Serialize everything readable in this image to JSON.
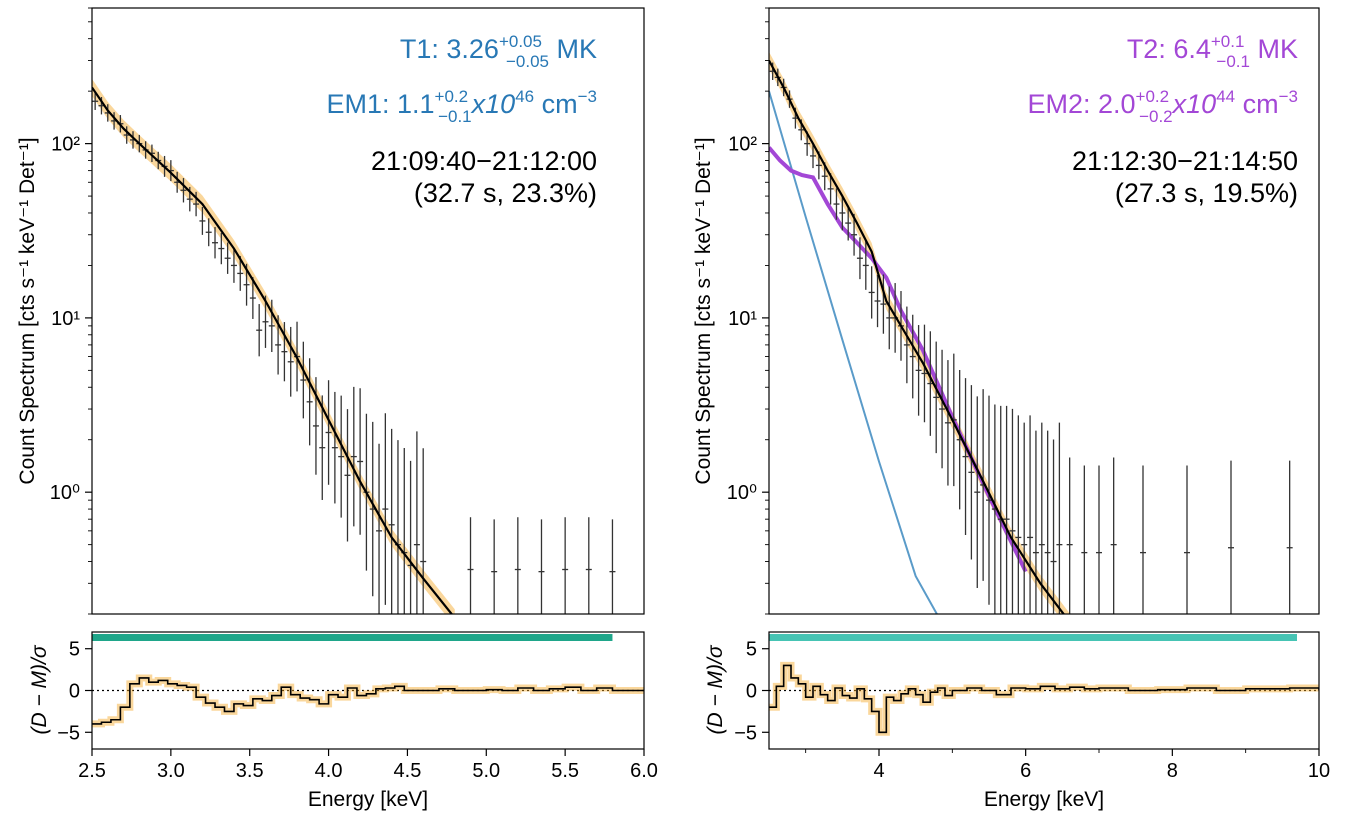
{
  "chart_data": [
    {
      "type": "scatter",
      "panel": "left-spectrum",
      "ylabel": "Count Spectrum [cts s⁻¹ keV⁻¹ Det⁻¹]",
      "xlim": [
        2.5,
        6.0
      ],
      "ylim": [
        0.2,
        600
      ],
      "yscale": "log",
      "yticks": [
        "10⁰",
        "10¹",
        "10²"
      ],
      "annotations": {
        "temp_label": "T1: 3.26",
        "temp_sup": "+0.05",
        "temp_sub": "−0.05",
        "temp_unit": " MK",
        "temp_color": "#2878b5",
        "em_label": "EM1: 1.1",
        "em_sup": "+0.2",
        "em_sub": "−0.1",
        "em_unit_mid": "x10",
        "em_exp": "46",
        "em_unit": " cm",
        "em_unit_exp": "−3",
        "em_color": "#2878b5",
        "time_range": "21:09:40−21:12:00",
        "time_info": "(32.7 s, 23.3%)"
      },
      "series": [
        {
          "role": "data",
          "x": [
            2.52,
            2.56,
            2.6,
            2.64,
            2.68,
            2.72,
            2.76,
            2.8,
            2.84,
            2.88,
            2.92,
            2.96,
            3.0,
            3.04,
            3.08,
            3.12,
            3.16,
            3.2,
            3.24,
            3.28,
            3.32,
            3.36,
            3.4,
            3.44,
            3.48,
            3.52,
            3.56,
            3.6,
            3.64,
            3.68,
            3.72,
            3.76,
            3.8,
            3.84,
            3.88,
            3.92,
            3.96,
            4.0,
            4.04,
            4.08,
            4.12,
            4.16,
            4.2,
            4.24,
            4.28,
            4.32,
            4.36,
            4.4,
            4.44,
            4.48,
            4.52,
            4.56,
            4.6,
            4.9,
            5.05,
            5.2,
            5.35,
            5.5,
            5.65,
            5.8
          ],
          "y": [
            175,
            165,
            150,
            135,
            130,
            112,
            105,
            100,
            92,
            88,
            80,
            74,
            70,
            60,
            54,
            48,
            45,
            36,
            31,
            27,
            25,
            22,
            20,
            18,
            15.5,
            13,
            8.5,
            9.5,
            9.0,
            7.0,
            6.4,
            5.6,
            6.0,
            4.4,
            3.3,
            2.4,
            1.8,
            2.2,
            1.8,
            1.6,
            1.25,
            1.6,
            1.5,
            1.0,
            0.8,
            0.6,
            0.8,
            0.65,
            0.5,
            0.45,
            0.38,
            0.5,
            0.4,
            0.36,
            0.35,
            0.36,
            0.35,
            0.36,
            0.36,
            0.35
          ],
          "err_lo": [
            0.05,
            0.05,
            0.05,
            0.05,
            0.05,
            0.05,
            0.05,
            0.05,
            0.05,
            0.05,
            0.05,
            0.06,
            0.06,
            0.06,
            0.07,
            0.07,
            0.07,
            0.08,
            0.08,
            0.09,
            0.09,
            0.09,
            0.1,
            0.1,
            0.12,
            0.12,
            0.15,
            0.15,
            0.15,
            0.17,
            0.17,
            0.2,
            0.2,
            0.22,
            0.25,
            0.28,
            0.3,
            0.3,
            0.32,
            0.35,
            0.38,
            0.4,
            0.42,
            0.45,
            0.5,
            0.5,
            0.55,
            0.55,
            0.6,
            0.6,
            0.6,
            0.65,
            0.65,
            0.3,
            0.3,
            0.3,
            0.3,
            0.3,
            0.3,
            0.3
          ],
          "err_hi": [
            0.05,
            0.05,
            0.05,
            0.05,
            0.05,
            0.05,
            0.05,
            0.05,
            0.05,
            0.05,
            0.05,
            0.06,
            0.06,
            0.06,
            0.07,
            0.07,
            0.07,
            0.08,
            0.08,
            0.09,
            0.09,
            0.09,
            0.1,
            0.1,
            0.12,
            0.12,
            0.15,
            0.15,
            0.15,
            0.17,
            0.17,
            0.2,
            0.2,
            0.22,
            0.25,
            0.28,
            0.3,
            0.3,
            0.32,
            0.35,
            0.38,
            0.4,
            0.42,
            0.45,
            0.5,
            0.5,
            0.55,
            0.55,
            0.6,
            0.6,
            0.6,
            0.65,
            0.65,
            0.3,
            0.3,
            0.3,
            0.3,
            0.3,
            0.3,
            0.3
          ],
          "color": "#333333"
        },
        {
          "role": "model-total",
          "x": [
            2.5,
            2.6,
            2.7,
            2.8,
            3.0,
            3.2,
            3.4,
            3.6,
            3.8,
            4.0,
            4.2,
            4.4,
            4.6,
            4.8
          ],
          "y": [
            210,
            155,
            122,
            100,
            68,
            45,
            25,
            12.5,
            5.9,
            2.6,
            1.15,
            0.55,
            0.32,
            0.19
          ],
          "color": "#000000"
        }
      ]
    },
    {
      "type": "line",
      "panel": "left-residual",
      "ylabel": "(D − M)/σ",
      "xlabel": "Energy [keV]",
      "xlim": [
        2.5,
        6.0
      ],
      "ylim": [
        -7,
        7
      ],
      "xticks": [
        "2.5",
        "3.0",
        "3.5",
        "4.0",
        "4.5",
        "5.0",
        "5.5",
        "6.0"
      ],
      "yticks": [
        "−5",
        "0",
        "5"
      ],
      "fit_range_bar": {
        "x": [
          2.5,
          5.8
        ],
        "color": "#1fa68a"
      },
      "series": [
        {
          "role": "residual",
          "x": [
            2.5,
            2.56,
            2.62,
            2.68,
            2.74,
            2.8,
            2.86,
            2.92,
            2.98,
            3.04,
            3.1,
            3.16,
            3.22,
            3.28,
            3.34,
            3.4,
            3.46,
            3.52,
            3.58,
            3.64,
            3.7,
            3.76,
            3.82,
            3.88,
            3.94,
            4.0,
            4.06,
            4.12,
            4.18,
            4.24,
            4.3,
            4.36,
            4.42,
            4.48,
            4.6,
            4.7,
            4.8,
            4.9,
            5.0,
            5.1,
            5.2,
            5.3,
            5.4,
            5.5,
            5.6,
            5.7,
            5.8,
            6.0
          ],
          "y": [
            -4.0,
            -3.8,
            -3.5,
            -2.0,
            0.8,
            1.5,
            1.0,
            1.2,
            0.8,
            0.6,
            0.4,
            -0.8,
            -1.5,
            -2.0,
            -2.5,
            -1.6,
            -1.8,
            -1.0,
            -1.2,
            -0.6,
            0.4,
            -0.5,
            -0.9,
            -1.1,
            -1.6,
            -0.5,
            -0.8,
            0.3,
            -0.6,
            -0.4,
            0.2,
            0.3,
            0.5,
            0.0,
            0.0,
            0.2,
            0.0,
            0.0,
            0.1,
            0.0,
            0.3,
            0.0,
            0.2,
            0.4,
            0.0,
            0.3,
            0.0,
            0.0
          ]
        }
      ]
    },
    {
      "type": "scatter",
      "panel": "right-spectrum",
      "ylabel": "Count Spectrum [cts s⁻¹ keV⁻¹ Det⁻¹]",
      "xlim": [
        2.5,
        10.0
      ],
      "ylim": [
        0.2,
        600
      ],
      "yscale": "log",
      "yticks": [
        "10⁰",
        "10¹",
        "10²"
      ],
      "annotations": {
        "temp_label": "T2: 6.4",
        "temp_sup": "+0.1",
        "temp_sub": "−0.1",
        "temp_unit": " MK",
        "temp_color": "#a347d6",
        "em_label": "EM2: 2.0",
        "em_sup": "+0.2",
        "em_sub": "−0.2",
        "em_unit_mid": "x10",
        "em_exp": "44",
        "em_unit": " cm",
        "em_unit_exp": "−3",
        "em_color": "#a347d6",
        "time_range": "21:12:30−21:14:50",
        "time_info": "(27.3 s, 19.5%)"
      },
      "series": [
        {
          "role": "data",
          "x": [
            2.55,
            2.62,
            2.7,
            2.78,
            2.86,
            2.94,
            3.02,
            3.1,
            3.18,
            3.26,
            3.34,
            3.42,
            3.5,
            3.58,
            3.66,
            3.74,
            3.82,
            3.9,
            3.98,
            4.06,
            4.14,
            4.22,
            4.3,
            4.38,
            4.46,
            4.54,
            4.62,
            4.7,
            4.78,
            4.86,
            4.94,
            5.02,
            5.1,
            5.18,
            5.26,
            5.34,
            5.42,
            5.5,
            5.58,
            5.66,
            5.74,
            5.82,
            5.9,
            5.98,
            6.06,
            6.14,
            6.22,
            6.3,
            6.38,
            6.46,
            6.6,
            6.8,
            7.0,
            7.2,
            7.6,
            8.2,
            8.8,
            9.6
          ],
          "y": [
            260,
            240,
            210,
            180,
            140,
            120,
            100,
            85,
            75,
            65,
            55,
            45,
            40,
            35,
            30,
            22,
            20,
            14,
            12.5,
            12,
            10,
            10,
            9,
            7,
            6,
            5,
            4.8,
            4.2,
            3.5,
            3.0,
            2.5,
            2.6,
            2.0,
            1.6,
            1.3,
            1.0,
            1.1,
            0.9,
            0.8,
            0.7,
            0.7,
            0.6,
            0.55,
            0.5,
            0.55,
            0.45,
            0.5,
            0.45,
            0.4,
            0.5,
            0.5,
            0.45,
            0.45,
            0.5,
            0.45,
            0.45,
            0.48,
            0.48
          ],
          "err_lo": [
            0.05,
            0.05,
            0.05,
            0.05,
            0.06,
            0.06,
            0.07,
            0.07,
            0.08,
            0.08,
            0.09,
            0.09,
            0.1,
            0.1,
            0.12,
            0.12,
            0.14,
            0.15,
            0.15,
            0.17,
            0.18,
            0.2,
            0.2,
            0.22,
            0.24,
            0.26,
            0.28,
            0.3,
            0.32,
            0.34,
            0.36,
            0.38,
            0.4,
            0.45,
            0.5,
            0.55,
            0.55,
            0.6,
            0.6,
            0.65,
            0.65,
            0.7,
            0.7,
            0.7,
            0.7,
            0.7,
            0.7,
            0.7,
            0.7,
            0.7,
            0.5,
            0.5,
            0.5,
            0.5,
            0.5,
            0.5,
            0.5,
            0.5
          ],
          "err_hi": [
            0.05,
            0.05,
            0.05,
            0.05,
            0.06,
            0.06,
            0.07,
            0.07,
            0.08,
            0.08,
            0.09,
            0.09,
            0.1,
            0.1,
            0.12,
            0.12,
            0.14,
            0.15,
            0.15,
            0.17,
            0.18,
            0.2,
            0.2,
            0.22,
            0.24,
            0.26,
            0.28,
            0.3,
            0.32,
            0.34,
            0.36,
            0.38,
            0.4,
            0.45,
            0.5,
            0.55,
            0.55,
            0.6,
            0.6,
            0.65,
            0.65,
            0.7,
            0.7,
            0.7,
            0.7,
            0.7,
            0.7,
            0.7,
            0.7,
            0.7,
            0.5,
            0.5,
            0.5,
            0.5,
            0.5,
            0.5,
            0.5,
            0.5
          ],
          "color": "#333333"
        },
        {
          "role": "model-total",
          "x": [
            2.5,
            2.7,
            2.9,
            3.1,
            3.3,
            3.5,
            3.7,
            3.9,
            4.1,
            4.3,
            4.6,
            5.0,
            5.4,
            5.8,
            6.2,
            6.6
          ],
          "y": [
            300,
            210,
            140,
            100,
            70,
            50,
            35,
            24,
            12.5,
            9,
            5.5,
            2.6,
            1.2,
            0.55,
            0.3,
            0.18
          ],
          "color": "#000000"
        },
        {
          "role": "model-component-1",
          "x": [
            2.5,
            3.0,
            3.5,
            4.0,
            4.5,
            4.85
          ],
          "y": [
            200,
            38,
            7.5,
            1.5,
            0.33,
            0.18
          ],
          "color": "#5a9bc9"
        },
        {
          "role": "model-component-2",
          "x": [
            2.5,
            2.65,
            2.8,
            2.95,
            3.1,
            3.3,
            3.5,
            3.7,
            3.9,
            4.1,
            4.3,
            4.6,
            5.0,
            5.5,
            6.0
          ],
          "y": [
            95,
            80,
            70,
            66,
            64,
            45,
            33,
            27,
            22,
            17,
            11,
            6.5,
            2.7,
            0.95,
            0.35
          ],
          "color": "#a347d6"
        }
      ]
    },
    {
      "type": "line",
      "panel": "right-residual",
      "ylabel": "(D − M)/σ",
      "xlabel": "Energy [keV]",
      "xlim": [
        2.5,
        10.0
      ],
      "ylim": [
        -7,
        7
      ],
      "xticks": [
        "4",
        "6",
        "8",
        "10"
      ],
      "xtick_values": [
        4,
        6,
        8,
        10
      ],
      "yticks": [
        "−5",
        "0",
        "5"
      ],
      "fit_range_bar": {
        "x": [
          2.5,
          9.7
        ],
        "color": "#46c4b4"
      },
      "series": [
        {
          "role": "residual",
          "x": [
            2.5,
            2.6,
            2.7,
            2.8,
            2.9,
            3.0,
            3.1,
            3.2,
            3.3,
            3.4,
            3.5,
            3.6,
            3.7,
            3.8,
            3.9,
            4.0,
            4.1,
            4.2,
            4.3,
            4.4,
            4.5,
            4.6,
            4.7,
            4.8,
            4.9,
            5.0,
            5.2,
            5.4,
            5.6,
            5.8,
            6.0,
            6.2,
            6.4,
            6.6,
            6.8,
            7.0,
            7.4,
            7.8,
            8.2,
            8.6,
            9.0,
            9.6,
            10.0
          ],
          "y": [
            -2.0,
            0.5,
            3.0,
            1.5,
            0.8,
            -0.8,
            0.5,
            -0.5,
            -1.2,
            0.3,
            -0.6,
            -0.9,
            0.2,
            -1.0,
            -2.5,
            -5.0,
            -0.8,
            -1.2,
            -0.4,
            0.2,
            -0.5,
            -1.4,
            -0.2,
            0.3,
            -0.6,
            0.0,
            0.3,
            0.0,
            -0.5,
            0.3,
            0.2,
            0.5,
            0.2,
            0.4,
            0.2,
            0.3,
            0.0,
            0.1,
            0.3,
            0.0,
            0.2,
            0.3,
            0.0
          ]
        }
      ]
    }
  ]
}
